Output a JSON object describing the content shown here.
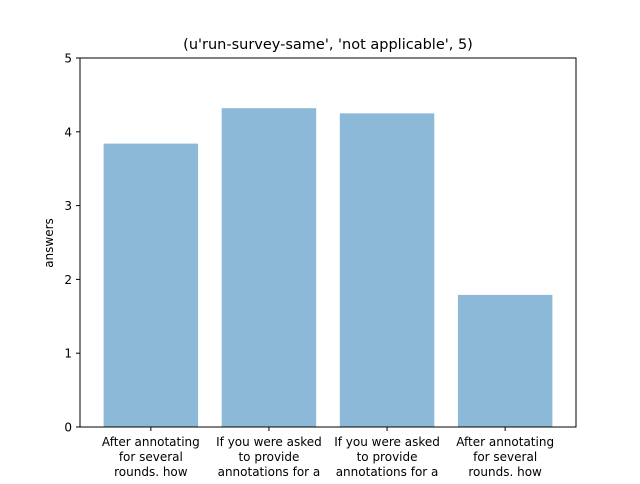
{
  "chart_data": {
    "type": "bar",
    "title": "(u'run-survey-same', 'not applicable', 5)",
    "xlabel": "",
    "ylabel": "answers",
    "ylim": [
      0,
      5
    ],
    "yticks": [
      0,
      1,
      2,
      3,
      4,
      5
    ],
    "grid": false,
    "legend": "none",
    "categories": [
      [
        "After annotating",
        "for several",
        "rounds. how"
      ],
      [
        "If you were asked",
        "to provide",
        "annotations for a"
      ],
      [
        "If you were asked",
        "to provide",
        "annotations for a"
      ],
      [
        "After annotating",
        "for several",
        "rounds. how"
      ]
    ],
    "values": [
      3.84,
      4.32,
      4.25,
      1.79
    ],
    "bar_color": "#8db9d9"
  }
}
